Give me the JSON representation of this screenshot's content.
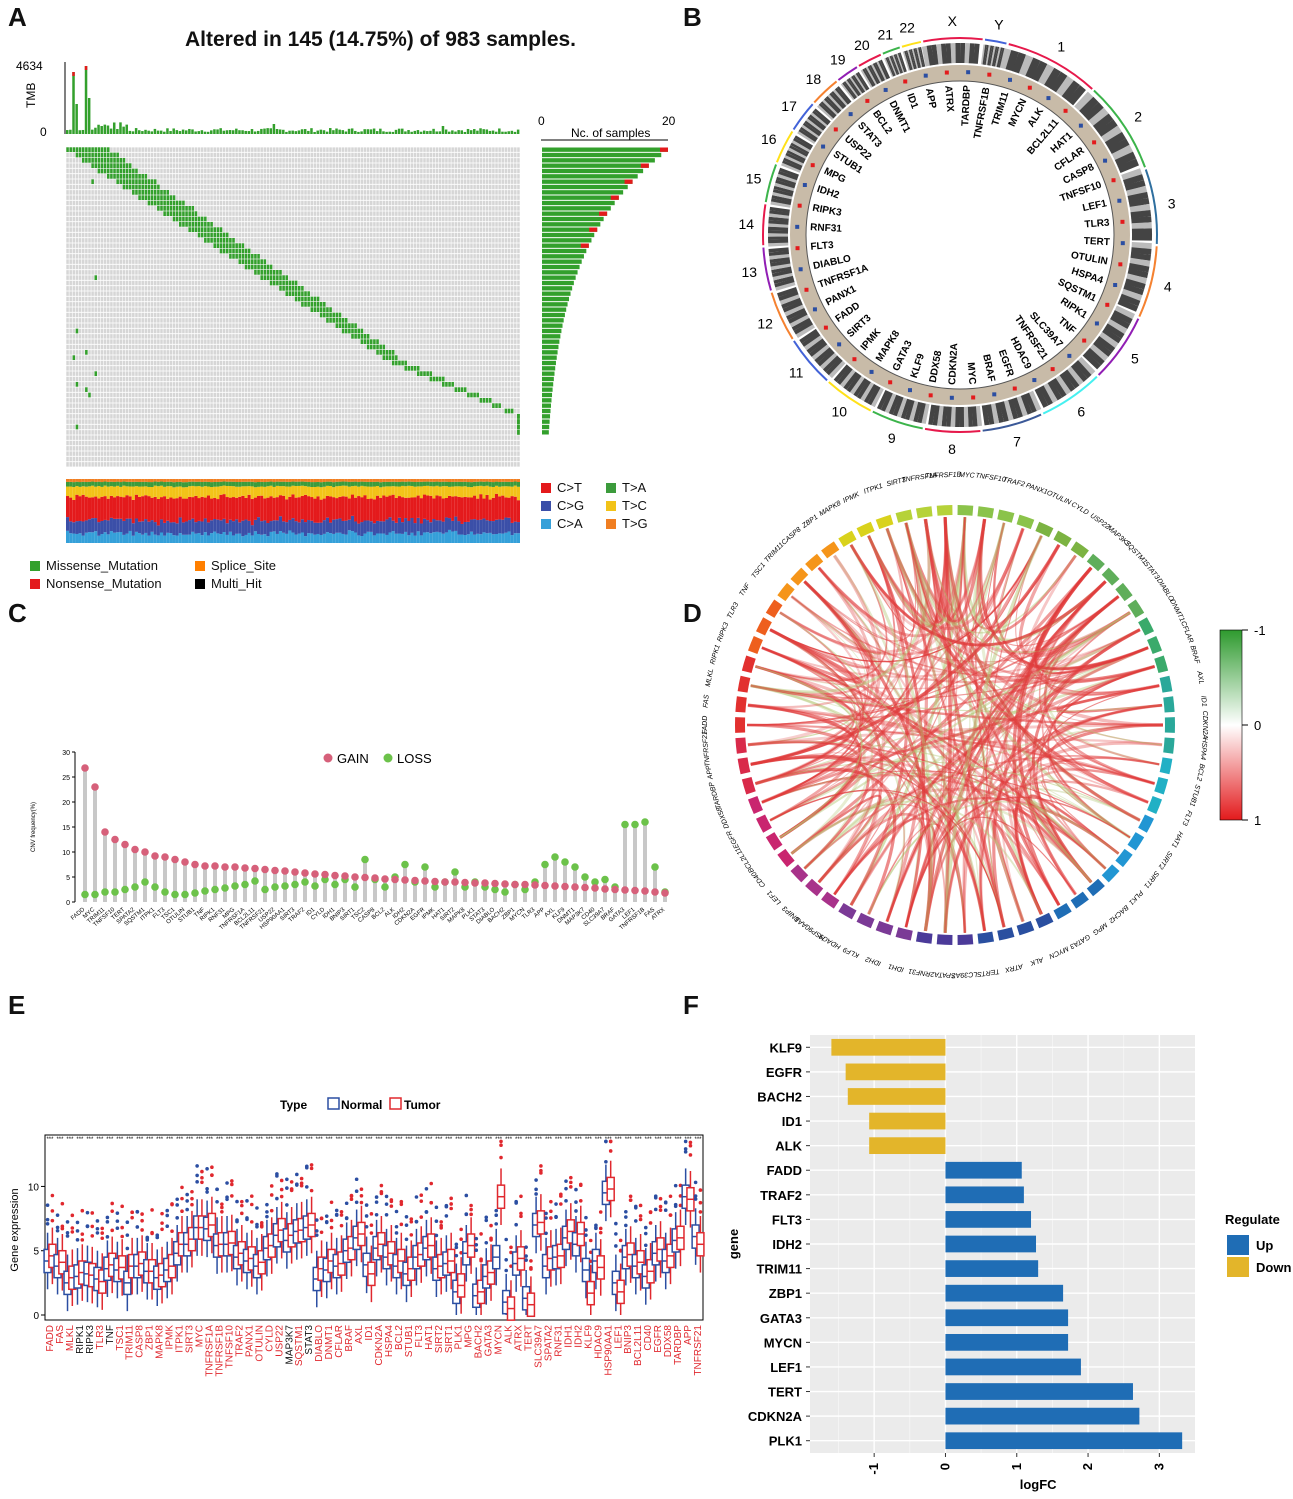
{
  "panels": {
    "a": "A",
    "b": "B",
    "c": "C",
    "d": "D",
    "e": "E",
    "f": "F"
  },
  "colors": {
    "missense": "#33a02c",
    "nonsense": "#e31a1c",
    "splice": "#ff7f00",
    "multi": "#000000",
    "gain": "#d6607a",
    "loss": "#6cc24a",
    "normal": "#2b4ea2",
    "tumor": "#e0282e",
    "up": "#1f6db5",
    "down": "#e3b52a",
    "cT": "#e41a1c",
    "cG": "#3b4fa8",
    "cA": "#35a0d9",
    "tA": "#3c9b3c",
    "tC": "#f2c318",
    "tG": "#f07e21"
  },
  "oncoplot": {
    "title": "Altered in 145 (14.75%) of 983 samples.",
    "tmb_label": "TMB",
    "tmb_max": "4634",
    "tmb_min": "0",
    "nc_label": "Nc. of samples",
    "nc_ticks": [
      "0",
      "20"
    ],
    "gene_rows": 60,
    "legend": {
      "missense": "Missense_Mutation",
      "nonsense": "Nonsense_Mutation",
      "splice": "Splice_Site",
      "multi": "Multi_Hit"
    },
    "titv": [
      "C>T",
      "T>A",
      "C>G",
      "T>C",
      "C>A",
      "T>G"
    ]
  },
  "circos": {
    "chromosomes": [
      "1",
      "2",
      "3",
      "4",
      "5",
      "6",
      "7",
      "8",
      "9",
      "10",
      "11",
      "12",
      "13",
      "14",
      "15",
      "16",
      "17",
      "18",
      "19",
      "20",
      "21",
      "22",
      "X",
      "Y"
    ],
    "genes": [
      "TARDBP",
      "TNFRSF1B",
      "TRIM11",
      "MYCN",
      "ALK",
      "BCL2L11",
      "HAT1",
      "CFLAR",
      "CASP8",
      "TNFSF10",
      "LEF1",
      "TLR3",
      "TERT",
      "OTULIN",
      "HSPA4",
      "SQSTM1",
      "RIPK1",
      "TNF",
      "SLC39A7",
      "TNFRSF21",
      "HDAC9",
      "EGFR",
      "BRAF",
      "MYC",
      "CDKN2A",
      "DDX58",
      "KLF9",
      "GATA3",
      "MAPK8",
      "IPMK",
      "SIRT3",
      "FADD",
      "PANX1",
      "TNFRSF1A",
      "DIABLO",
      "FLT3",
      "RNF31",
      "RIPK3",
      "IDH2",
      "MPG",
      "STUB1",
      "USP22",
      "STAT3",
      "BCL2",
      "DNMT1",
      "ID1",
      "APP",
      "ATRX"
    ]
  },
  "correlation": {
    "genes": [
      "MYC",
      "TNFSF10",
      "TRAF2",
      "PANX1",
      "OTULIN",
      "CYLD",
      "USP22",
      "MAP3K7",
      "SQSTM1",
      "STAT3",
      "DIABLO",
      "DNMT1",
      "CFLAR",
      "BRAF",
      "AXL",
      "ID1",
      "CDKN2A",
      "HSPA4",
      "BCL2",
      "STUB1",
      "FLT3",
      "HAT1",
      "SIRT2",
      "SIRT1",
      "PLK1",
      "BACH2",
      "MPG",
      "GATA3",
      "MYCN",
      "ALK",
      "ATRX",
      "TERT",
      "SLC39A7",
      "SPATA2",
      "RNF31",
      "IDH1",
      "IDH2",
      "KLF9",
      "HDAC9",
      "HSP90AA1",
      "BNIP3",
      "LEF1",
      "CD40",
      "BCL2L11",
      "EGFR",
      "DDX58",
      "TARDBP",
      "APP",
      "TNFRSF21",
      "FADD",
      "FAS",
      "MLKL",
      "RIPK1",
      "RIPK3",
      "TLR3",
      "TNF",
      "TSC1",
      "TRIM11",
      "CASP8",
      "ZBP1",
      "MAPK8",
      "IPMK",
      "ITPK1",
      "SIRT3",
      "TNFRSF1A",
      "TNFRSF1B"
    ],
    "legend_ticks": [
      "-1",
      "0",
      "1"
    ]
  },
  "chart_data": [
    {
      "type": "lollipop",
      "panel": "C",
      "ylabel": "CNV frequency(%)",
      "ylim": [
        0,
        30
      ],
      "yticks": [
        "0",
        "5",
        "10",
        "15",
        "20",
        "25",
        "30"
      ],
      "legend": {
        "gain": "GAIN",
        "loss": "LOSS"
      },
      "categories": [
        "FADD",
        "MYC",
        "TRIM11",
        "TNFSF10",
        "TERT",
        "SPATA2",
        "SQSTM1",
        "ITPK1",
        "FLT3",
        "TSC1",
        "OTULIN",
        "STUB1",
        "TNF",
        "RIPK1",
        "RNF31",
        "MPG",
        "TNFRSF1A",
        "BCL2L11",
        "TNFRSF21",
        "USP22",
        "HSP90AA1",
        "SIRT3",
        "TRAF2",
        "ID1",
        "CYLD",
        "IDH1",
        "BNIP3",
        "SIRT1",
        "TSC2",
        "CASP8",
        "BCL2",
        "ALK",
        "IDH2",
        "CDKN2A",
        "EGFR",
        "IPMK",
        "HAT1",
        "SIRT2",
        "MAPK8",
        "PLK1",
        "STAT3",
        "DIABLO",
        "BACH2",
        "ZBP1",
        "MYCN",
        "TLR3",
        "APP",
        "AXL",
        "KLF9",
        "DNMT1",
        "MAP3K7",
        "CD40",
        "SLC39A7",
        "BRAF",
        "GATA3",
        "LEF1",
        "TNFRSF1B",
        "FAS",
        "ATRX"
      ],
      "gain": [
        26.8,
        23,
        14,
        12.5,
        11.5,
        10.5,
        10,
        9.2,
        9,
        8.5,
        8,
        7.5,
        7.2,
        7.2,
        7,
        7,
        6.8,
        6.7,
        6.5,
        6.3,
        6.2,
        6,
        5.8,
        5.6,
        5.5,
        5.3,
        5.2,
        5,
        4.9,
        4.8,
        4.6,
        4.5,
        4.4,
        4.3,
        4.2,
        4.1,
        4.0,
        4.0,
        3.9,
        3.8,
        3.8,
        3.7,
        3.6,
        3.5,
        3.5,
        3.4,
        3.3,
        3.2,
        3.1,
        3.0,
        2.9,
        2.8,
        2.6,
        2.5,
        2.4,
        2.3,
        2.2,
        2.0,
        1.8
      ],
      "loss": [
        1.5,
        1.5,
        2,
        2,
        2.5,
        3,
        4,
        3,
        2,
        1.5,
        1.5,
        1.8,
        2.2,
        2.5,
        2.8,
        3.2,
        3.5,
        4.2,
        2.5,
        3,
        3.2,
        3.5,
        4,
        3.2,
        4.5,
        3.5,
        4.5,
        3,
        8.5,
        4.5,
        3,
        5,
        7.5,
        4,
        7,
        3,
        4,
        6,
        3,
        4,
        3,
        2.5,
        2,
        3.5,
        2.5,
        4,
        7.5,
        9,
        8,
        7,
        5,
        4,
        4.5,
        3,
        15.5,
        15.5,
        16,
        7,
        2
      ]
    },
    {
      "type": "bar",
      "panel": "F",
      "orientation": "horizontal",
      "xlabel": "logFC",
      "ylabel": "gene",
      "xlim": [
        -1.9,
        3.5
      ],
      "xticks": [
        "-1",
        "0",
        "1",
        "2",
        "3"
      ],
      "legend_title": "Regulate",
      "legend": {
        "up": "Up",
        "down": "Down"
      },
      "categories": [
        "KLF9",
        "EGFR",
        "BACH2",
        "ID1",
        "ALK",
        "FADD",
        "TRAF2",
        "FLT3",
        "IDH2",
        "TRIM11",
        "ZBP1",
        "GATA3",
        "MYCN",
        "LEF1",
        "TERT",
        "CDKN2A",
        "PLK1"
      ],
      "values": [
        -1.6,
        -1.4,
        -1.37,
        -1.07,
        -1.07,
        1.07,
        1.1,
        1.2,
        1.27,
        1.3,
        1.65,
        1.72,
        1.72,
        1.9,
        2.63,
        2.72,
        3.32
      ],
      "regulate": [
        "Down",
        "Down",
        "Down",
        "Down",
        "Down",
        "Up",
        "Up",
        "Up",
        "Up",
        "Up",
        "Up",
        "Up",
        "Up",
        "Up",
        "Up",
        "Up",
        "Up"
      ]
    },
    {
      "type": "boxplot",
      "panel": "E",
      "ylabel": "Gene expression",
      "yticks": [
        "0",
        "5",
        "10"
      ],
      "legend_title": "Type",
      "legend": {
        "normal": "Normal",
        "tumor": "Tumor"
      },
      "categories": [
        "FADD",
        "FAS",
        "MLKL",
        "RIPK1",
        "RIPK3",
        "TLR3",
        "TNF",
        "TSC1",
        "TRIM11",
        "CASP8",
        "ZBP1",
        "MAPK8",
        "IPMK",
        "ITPK1",
        "SIRT3",
        "MYC",
        "TNFRSF1A",
        "TNFRSF1B",
        "TNFSF10",
        "TRAF2",
        "PANX1",
        "OTULIN",
        "CYLD",
        "USP22",
        "MAP3K7",
        "SQSTM1",
        "STAT3",
        "DIABLO",
        "DNMT1",
        "CFLAR",
        "BRAF",
        "AXL",
        "ID1",
        "CDKN2A",
        "HSPA4",
        "BCL2",
        "STUB1",
        "FLT3",
        "HAT1",
        "SIRT2",
        "SIRT1",
        "PLK1",
        "MPG",
        "BACH2",
        "GATA3",
        "MYCN",
        "ALK",
        "ATRX",
        "TERT",
        "SLC39A7",
        "SPATA2",
        "RNF31",
        "IDH1",
        "IDH2",
        "KLF9",
        "HDAC9",
        "HSP90AA1",
        "LEF1",
        "BNIP3",
        "BCL2L11",
        "CD40",
        "EGFR",
        "DDX58",
        "TARDBP",
        "APP",
        "TNFRSF21"
      ],
      "black_labels": [
        "RIPK1",
        "RIPK3",
        "TNF",
        "MAP3K7",
        "STAT3"
      ],
      "normal_median": [
        4.2,
        3.8,
        2.5,
        3,
        3.2,
        2.8,
        3.6,
        3.5,
        2.5,
        3.8,
        3.4,
        2.9,
        3.5,
        4.8,
        5.5,
        6.8,
        6.7,
        5.4,
        5.5,
        4.5,
        4.2,
        3.8,
        5.2,
        6.2,
        5.8,
        6.5,
        6.8,
        2.8,
        3.5,
        3.8,
        5,
        6,
        3.9,
        5.2,
        4.5,
        3.8,
        3.2,
        4.5,
        5.2,
        3.6,
        4,
        1.8,
        4.8,
        1.5,
        3,
        4.5,
        1,
        4,
        1.3,
        7,
        3.8,
        4.5,
        6,
        5.5,
        3.5,
        4.2,
        9.5,
        2.5,
        4.5,
        3.8,
        3,
        4.8,
        4.2,
        5.8,
        9.2,
        6.1
      ],
      "tumor_median": [
        4.6,
        4.1,
        2.9,
        3.3,
        3.1,
        2.6,
        3.9,
        3.7,
        3.8,
        4,
        3.4,
        3.1,
        3.8,
        5.5,
        5.9,
        6.8,
        7,
        5.5,
        5.6,
        4.8,
        4.4,
        4.1,
        5.4,
        6.6,
        6.2,
        6.6,
        7,
        3.6,
        4.2,
        4,
        5.2,
        6.3,
        3.2,
        5.5,
        4.8,
        4.2,
        3.6,
        4.7,
        5.4,
        3.8,
        4.2,
        2.3,
        5.4,
        1.8,
        3.3,
        9.2,
        0.5,
        4.4,
        0.8,
        7.2,
        4.4,
        4.6,
        6.5,
        6.3,
        1.7,
        3.7,
        9.8,
        1.8,
        4.7,
        4.1,
        3.4,
        5.1,
        4.6,
        6,
        9,
        5.5
      ]
    }
  ]
}
